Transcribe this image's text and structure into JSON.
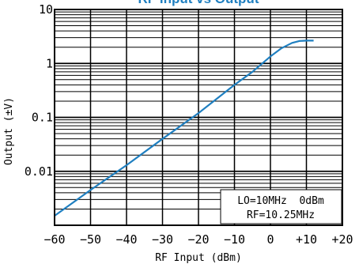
{
  "chart_data": {
    "type": "line",
    "title": "RF Input vs Output",
    "xlabel": "RF Input (dBm)",
    "ylabel": "Output (±V)",
    "xlim": [
      -60,
      20
    ],
    "ylim": [
      0.001,
      10
    ],
    "yscale": "log",
    "grid": true,
    "x_tick_labels": [
      "−60",
      "−50",
      "−40",
      "−30",
      "−20",
      "−10",
      "0",
      "+10",
      "+20"
    ],
    "y_tick_labels": [
      "10",
      "1",
      "0.1",
      "0.01"
    ],
    "annotation": [
      "LO=10MHz  0dBm",
      "RF=10.25MHz"
    ],
    "line_color": "#1f7fc0",
    "series": [
      {
        "x": [
          -60,
          -50,
          -40,
          -30,
          -20,
          -10,
          -5,
          0,
          3,
          6,
          8,
          10,
          12
        ],
        "values": [
          0.0015,
          0.0045,
          0.013,
          0.04,
          0.12,
          0.4,
          0.7,
          1.35,
          1.9,
          2.4,
          2.6,
          2.65,
          2.65
        ]
      }
    ]
  }
}
